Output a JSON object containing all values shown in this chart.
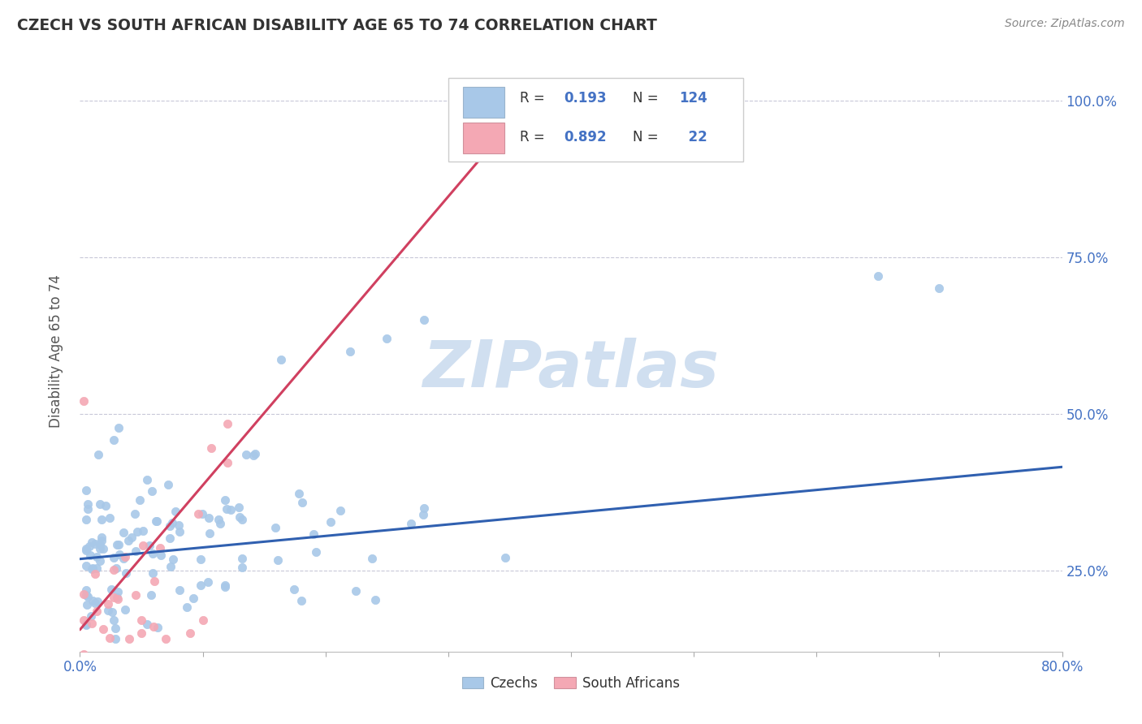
{
  "title": "CZECH VS SOUTH AFRICAN DISABILITY AGE 65 TO 74 CORRELATION CHART",
  "source_text": "Source: ZipAtlas.com",
  "ylabel": "Disability Age 65 to 74",
  "xlim": [
    0.0,
    0.8
  ],
  "ylim": [
    0.12,
    1.08
  ],
  "xticks": [
    0.0,
    0.1,
    0.2,
    0.3,
    0.4,
    0.5,
    0.6,
    0.7,
    0.8
  ],
  "xticklabels": [
    "0.0%",
    "",
    "",
    "",
    "",
    "",
    "",
    "",
    "80.0%"
  ],
  "ytick_positions": [
    0.25,
    0.5,
    0.75,
    1.0
  ],
  "ytick_labels": [
    "25.0%",
    "50.0%",
    "75.0%",
    "100.0%"
  ],
  "czech_R": 0.193,
  "czech_N": 124,
  "sa_R": 0.892,
  "sa_N": 22,
  "czech_color": "#a8c8e8",
  "sa_color": "#f4a8b4",
  "czech_line_color": "#3060b0",
  "sa_line_color": "#d04060",
  "watermark_color": "#d0dff0",
  "background_color": "#ffffff",
  "grid_color": "#c8c8d8",
  "title_color": "#333333",
  "axis_label_color": "#555555",
  "tick_label_color": "#4472c4",
  "czech_line_x0": 0.0,
  "czech_line_x1": 0.8,
  "czech_line_y0": 0.268,
  "czech_line_y1": 0.415,
  "sa_line_x0": 0.0,
  "sa_line_x1": 0.375,
  "sa_line_y0": 0.155,
  "sa_line_y1": 1.02
}
